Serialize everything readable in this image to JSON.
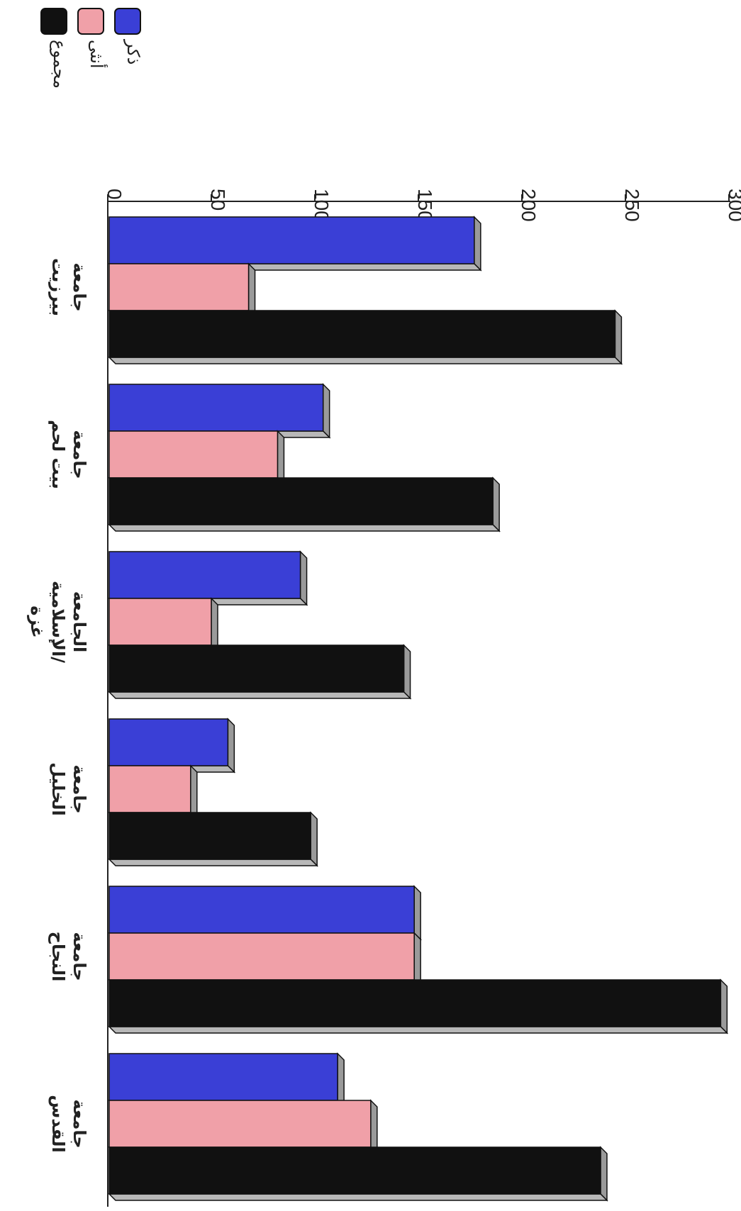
{
  "chart_data": {
    "type": "bar",
    "orientation": "horizontal",
    "rotated_page": true,
    "categories": [
      [
        "جامعة",
        "بيرزيت"
      ],
      [
        "جامعة",
        "بيت لحم"
      ],
      [
        "الجامعة",
        "الإسلامية/",
        "غزة"
      ],
      [
        "جامعة",
        "الخليل"
      ],
      [
        "جامعة",
        "النجاح"
      ],
      [
        "جامعة",
        "القدس"
      ]
    ],
    "series": [
      {
        "name": "ذكر",
        "color": "#3a3fd6",
        "values": [
          177,
          104,
          93,
          58,
          148,
          111
        ]
      },
      {
        "name": "أنثى",
        "color": "#f0a0a8",
        "values": [
          68,
          82,
          50,
          40,
          148,
          127
        ]
      },
      {
        "name": "مجموع",
        "color": "#111111",
        "values": [
          245,
          186,
          143,
          98,
          296,
          238
        ]
      }
    ],
    "axis": {
      "min": 0,
      "max": 300,
      "ticks": [
        "0",
        "50",
        "100",
        "150",
        "200",
        "250",
        "300"
      ]
    },
    "legend_position": "top-left",
    "grid": false
  }
}
